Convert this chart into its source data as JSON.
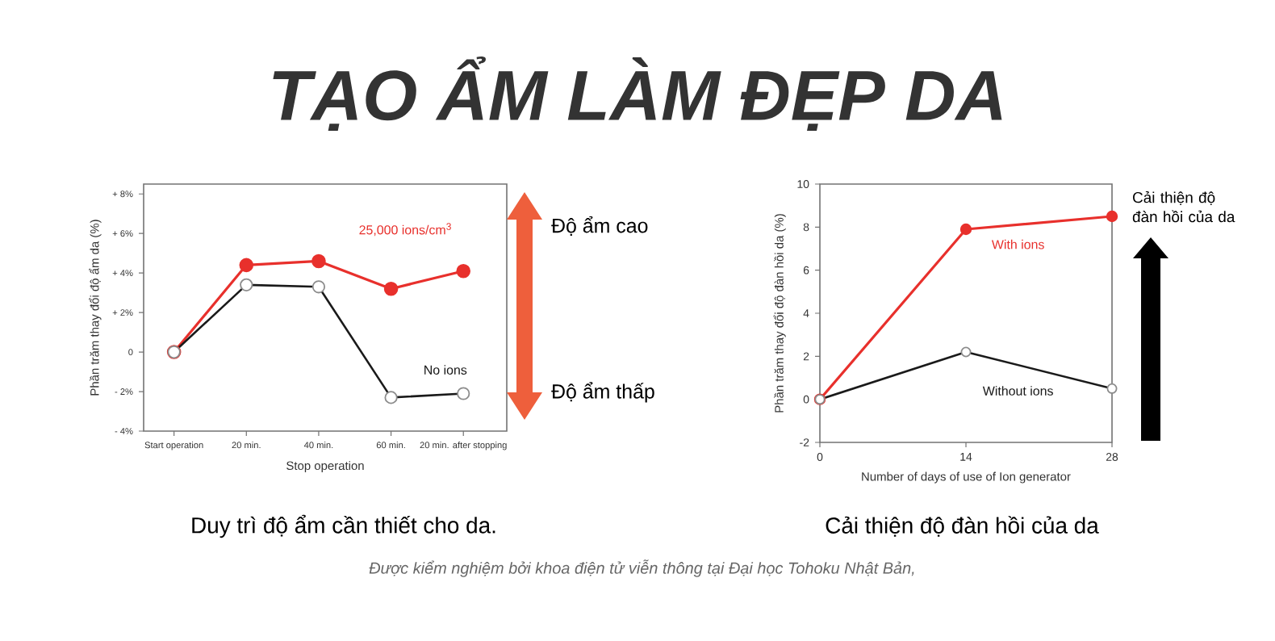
{
  "chart_data": [
    {
      "type": "line",
      "title": "TẠO ẨM LÀM ĐẸP DA",
      "ylabel": "Phần trăm thay đổi độ ẩm da (%)",
      "xlabel": "Stop operation",
      "categories": [
        "Start operation",
        "20 min.",
        "40 min.",
        "60 min.",
        "20 min. after stopping"
      ],
      "series": [
        {
          "name": "25,000 ions/cm$^{3}$",
          "color": "#e8302c",
          "values": [
            0,
            4.4,
            4.6,
            3.2,
            4.1
          ]
        },
        {
          "name": "No ions",
          "color": "#1a1a1a",
          "values": [
            0,
            3.4,
            3.3,
            -2.3,
            -2.1
          ]
        }
      ],
      "ylim": [
        -4,
        8.5
      ],
      "yticks": [
        {
          "value": -4,
          "label": "- 4%"
        },
        {
          "value": -2,
          "label": "- 2%"
        },
        0,
        {
          "value": 2,
          "label": "+ 2%"
        },
        {
          "value": 4,
          "label": "+ 4%"
        },
        {
          "value": 6,
          "label": "+ 6%"
        },
        {
          "value": 8,
          "label": "+ 8%"
        }
      ],
      "marker": "circle",
      "annotations": [
        "Độ ẩm cao",
        "Độ ẩm thấp",
        "Duy trì độ ẩm cần thiết cho da."
      ]
    },
    {
      "type": "line",
      "ylabel": "Phần trăm thay đổi độ đàn hồi da (%)",
      "xlabel": "Number of days of use of Ion generator",
      "x": [
        0,
        14,
        28
      ],
      "series": [
        {
          "name": "With ions",
          "color": "#e8302c",
          "values": [
            0,
            7.9,
            8.5
          ]
        },
        {
          "name": "Without ions",
          "color": "#1a1a1a",
          "values": [
            0,
            2.2,
            0.5
          ]
        }
      ],
      "xlim": [
        0,
        28
      ],
      "xticks": [
        0,
        14,
        28
      ],
      "ylim": [
        -2,
        10
      ],
      "yticks": [
        -2,
        0,
        2,
        4,
        6,
        8,
        10
      ],
      "marker": "circle",
      "annotations": [
        "Cải thiện độ đàn hồi của da",
        "Cải thiện độ đàn hồi của da",
        "Được kiểm nghiệm bởi khoa điện tử viễn thông tại Đại học Tohoku Nhật Bản,"
      ]
    }
  ]
}
